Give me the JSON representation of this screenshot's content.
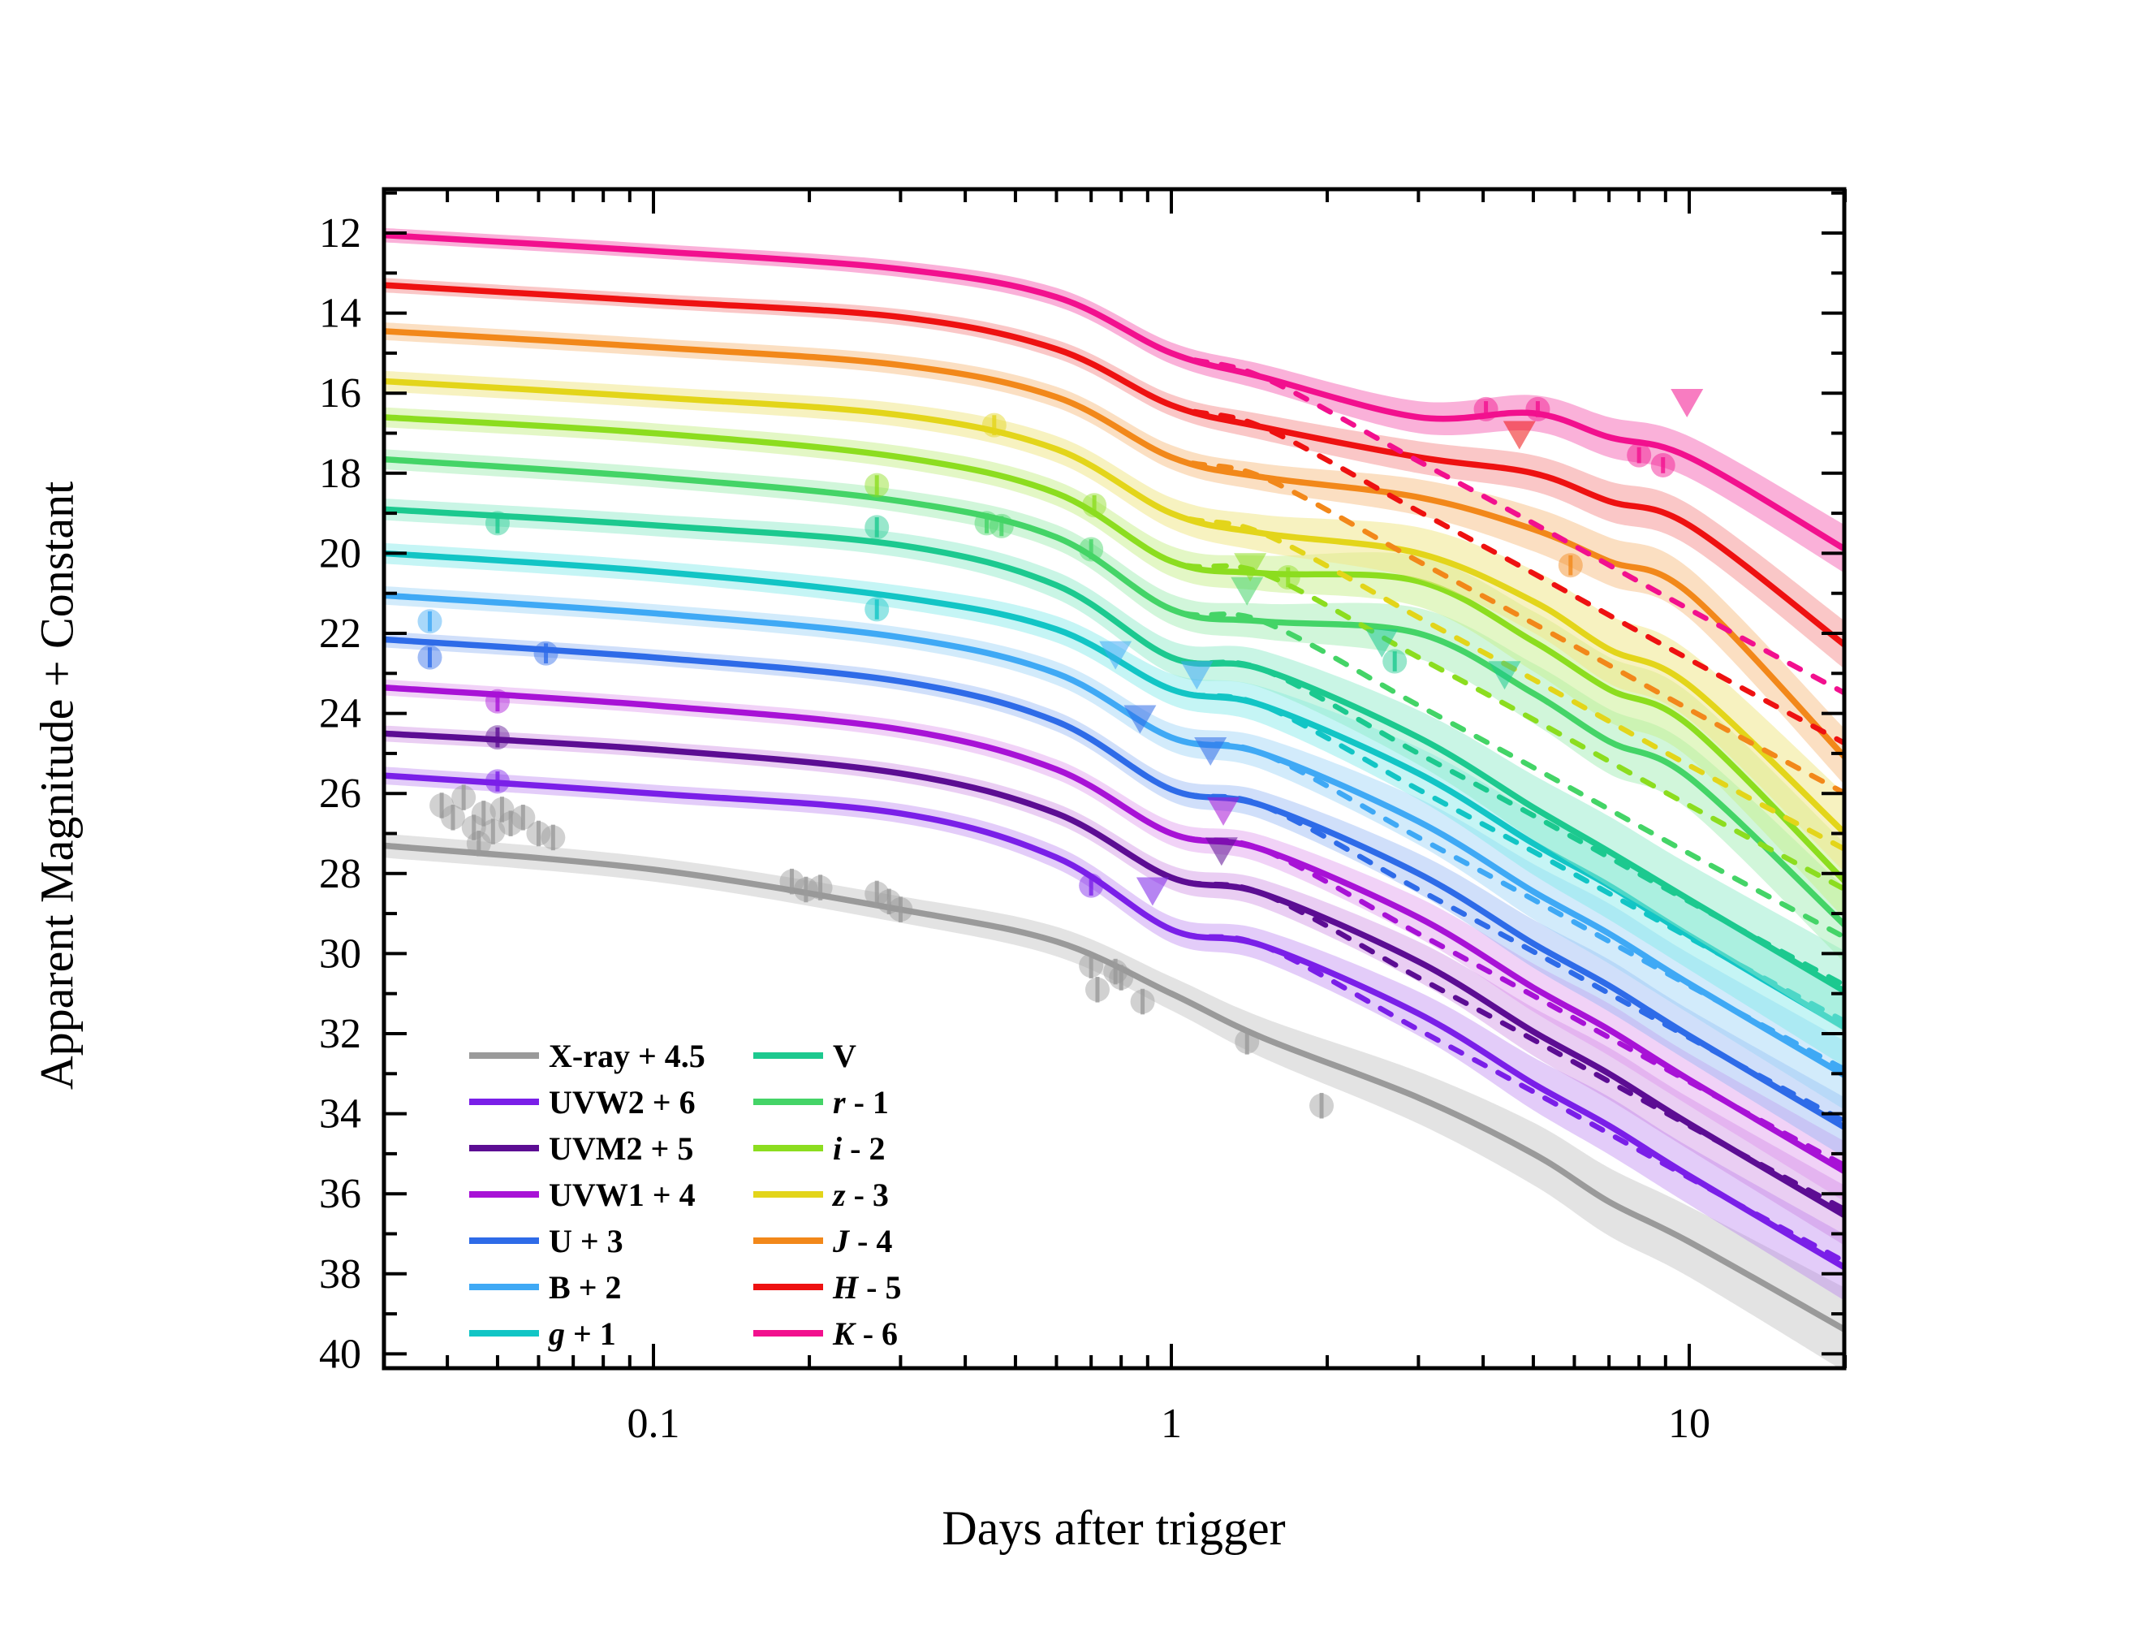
{
  "chart_data": {
    "type": "line",
    "title": "",
    "xlabel": "Days after trigger",
    "ylabel": "Apparent Magnitude + Constant",
    "x_scale": "log",
    "x_range": [
      0.0302,
      20.1
    ],
    "y_range_mag": [
      10.9,
      40.4
    ],
    "y_axis_inverted_note": "magnitudes increase downward",
    "x_major_ticks": [
      0.1,
      1,
      10
    ],
    "x_major_labels": [
      "0.1",
      "1",
      "10"
    ],
    "x_minor_ticks": [
      0.04,
      0.05,
      0.06,
      0.07,
      0.08,
      0.09,
      0.2,
      0.3,
      0.4,
      0.5,
      0.6,
      0.7,
      0.8,
      0.9,
      2,
      3,
      4,
      5,
      6,
      7,
      8,
      9,
      20
    ],
    "y_major_ticks": [
      12,
      14,
      16,
      18,
      20,
      22,
      24,
      26,
      28,
      30,
      32,
      34,
      36,
      38,
      40
    ],
    "y_minor_ticks": [
      11,
      13,
      15,
      17,
      19,
      21,
      23,
      25,
      27,
      29,
      31,
      33,
      35,
      37,
      39
    ],
    "grid": false,
    "legend_position": "lower-left-inside",
    "solid_x": [
      0.03,
      0.1,
      0.3,
      0.6,
      1,
      1.5,
      3,
      5,
      7,
      10,
      20
    ],
    "dashed_x": [
      0.03,
      0.1,
      0.3,
      0.6,
      1,
      1.5,
      3,
      5,
      10,
      20
    ],
    "series": [
      {
        "key": "xray",
        "sym": "X-ray",
        "rest": " + 4.5",
        "italic": false,
        "color": "#9A9A9A",
        "band_color": "#9A9A9A",
        "band_opacity": 0.28,
        "solid_mag": [
          27.3,
          27.9,
          28.9,
          29.7,
          31.0,
          32.1,
          33.6,
          35.0,
          36.2,
          37.2,
          39.4
        ],
        "dashed_mag": null,
        "hw": [
          0.3,
          0.3,
          0.33,
          0.37,
          0.42,
          0.5,
          0.65,
          0.78,
          0.85,
          0.88,
          1.05
        ],
        "circles": [
          [
            0.039,
            26.3
          ],
          [
            0.041,
            26.6
          ],
          [
            0.043,
            26.1
          ],
          [
            0.045,
            26.85
          ],
          [
            0.047,
            26.5
          ],
          [
            0.049,
            26.95
          ],
          [
            0.051,
            26.4
          ],
          [
            0.053,
            26.75
          ],
          [
            0.056,
            26.6
          ],
          [
            0.06,
            27.0
          ],
          [
            0.064,
            27.1
          ],
          [
            0.046,
            27.25
          ],
          [
            0.185,
            28.2
          ],
          [
            0.197,
            28.4
          ],
          [
            0.21,
            28.35
          ],
          [
            0.27,
            28.5
          ],
          [
            0.285,
            28.7
          ],
          [
            0.3,
            28.9
          ],
          [
            0.7,
            30.3
          ],
          [
            0.72,
            30.9
          ],
          [
            0.78,
            30.45
          ],
          [
            0.8,
            30.6
          ],
          [
            0.88,
            31.2
          ],
          [
            1.4,
            32.2
          ],
          [
            1.95,
            33.8
          ]
        ],
        "triangles": [],
        "err": 0.32
      },
      {
        "key": "uvw2",
        "sym": "UVW2",
        "rest": " + 6",
        "italic": false,
        "color": "#7A1FE8",
        "band_color": "#B57AF0",
        "band_opacity": 0.38,
        "solid_mag": [
          25.55,
          26.0,
          26.5,
          27.6,
          29.4,
          29.8,
          31.5,
          33.25,
          34.3,
          35.55,
          37.85
        ],
        "dashed_mag": [
          25.55,
          26.0,
          26.5,
          27.6,
          29.4,
          29.8,
          31.9,
          33.45,
          35.6,
          37.7
        ],
        "hw": [
          0.22,
          0.22,
          0.24,
          0.28,
          0.33,
          0.39,
          0.55,
          0.66,
          0.72,
          0.72,
          0.83
        ],
        "circles": [
          [
            0.05,
            25.7
          ],
          [
            0.7,
            28.3
          ]
        ],
        "triangles": [
          [
            0.92,
            28.4
          ]
        ],
        "err": 0.25
      },
      {
        "key": "uvm2",
        "sym": "UVM2",
        "rest": " + 5",
        "italic": false,
        "color": "#5C0D93",
        "band_color": "#C87FE0",
        "band_opacity": 0.38,
        "solid_mag": [
          24.5,
          24.9,
          25.5,
          26.5,
          28.1,
          28.5,
          30.2,
          31.95,
          33.0,
          34.25,
          36.55
        ],
        "dashed_mag": [
          24.5,
          24.9,
          25.5,
          26.5,
          28.1,
          28.5,
          30.6,
          32.15,
          34.3,
          36.4
        ],
        "hw": [
          0.2,
          0.2,
          0.22,
          0.25,
          0.3,
          0.35,
          0.5,
          0.6,
          0.65,
          0.65,
          0.75
        ],
        "circles": [
          [
            0.05,
            24.6
          ]
        ],
        "triangles": [
          [
            1.25,
            27.4
          ]
        ],
        "err": 0.25
      },
      {
        "key": "uvw1",
        "sym": "UVW1",
        "rest": " + 4",
        "italic": false,
        "color": "#A812D6",
        "band_color": "#DD8FEA",
        "band_opacity": 0.4,
        "solid_mag": [
          23.35,
          23.8,
          24.4,
          25.4,
          27.0,
          27.4,
          29.1,
          30.85,
          31.9,
          33.15,
          35.45
        ],
        "dashed_mag": [
          23.35,
          23.8,
          24.4,
          25.4,
          27.0,
          27.4,
          29.5,
          31.05,
          33.2,
          35.3
        ],
        "hw": [
          0.2,
          0.2,
          0.22,
          0.25,
          0.3,
          0.35,
          0.5,
          0.6,
          0.65,
          0.65,
          0.75
        ],
        "circles": [
          [
            0.05,
            23.7
          ]
        ],
        "triangles": [
          [
            1.26,
            26.4
          ]
        ],
        "err": 0.25
      },
      {
        "key": "u",
        "sym": "U",
        "rest": " + 3",
        "italic": false,
        "color": "#2E6BE8",
        "band_color": "#8FB2F2",
        "band_opacity": 0.42,
        "solid_mag": [
          22.15,
          22.6,
          23.2,
          24.2,
          25.9,
          26.3,
          28.0,
          29.75,
          30.8,
          32.05,
          34.35
        ],
        "dashed_mag": [
          22.15,
          22.6,
          23.2,
          24.2,
          25.9,
          26.3,
          28.4,
          29.95,
          32.1,
          34.2
        ],
        "hw": [
          0.2,
          0.2,
          0.22,
          0.25,
          0.3,
          0.35,
          0.5,
          0.6,
          0.65,
          0.65,
          0.75
        ],
        "circles": [
          [
            0.037,
            22.6
          ],
          [
            0.062,
            22.5
          ]
        ],
        "triangles": [
          [
            0.87,
            24.1
          ],
          [
            1.19,
            24.9
          ]
        ],
        "err": 0.25
      },
      {
        "key": "b",
        "sym": "B",
        "rest": " + 2",
        "italic": false,
        "color": "#3FA9F5",
        "band_color": "#9CD2F7",
        "band_opacity": 0.45,
        "solid_mag": [
          21.05,
          21.5,
          22.1,
          23.0,
          24.6,
          25.0,
          26.7,
          28.45,
          29.5,
          30.75,
          33.05
        ],
        "dashed_mag": [
          21.05,
          21.5,
          22.1,
          23.0,
          24.6,
          25.0,
          27.1,
          28.65,
          30.8,
          32.9
        ],
        "hw": [
          0.23,
          0.23,
          0.25,
          0.29,
          0.35,
          0.4,
          0.58,
          0.69,
          0.75,
          0.75,
          0.86
        ],
        "circles": [
          [
            0.037,
            21.7
          ]
        ],
        "triangles": [
          [
            0.78,
            22.5
          ],
          [
            1.12,
            23.0
          ]
        ],
        "err": 0.25
      },
      {
        "key": "g",
        "sym": "g",
        "rest": " + 1",
        "italic": true,
        "color": "#12C5C5",
        "band_color": "#7FE8E8",
        "band_opacity": 0.45,
        "solid_mag": [
          20.0,
          20.45,
          21.1,
          21.9,
          23.4,
          23.8,
          25.5,
          27.25,
          28.3,
          29.55,
          31.85
        ],
        "dashed_mag": [
          20.0,
          20.45,
          21.1,
          21.9,
          23.4,
          23.8,
          25.9,
          27.45,
          29.6,
          31.7
        ],
        "hw": [
          0.26,
          0.26,
          0.29,
          0.33,
          0.39,
          0.46,
          0.65,
          0.78,
          0.85,
          0.85,
          0.98
        ],
        "circles": [
          [
            0.27,
            21.4
          ]
        ],
        "triangles": [],
        "err": 0.25
      },
      {
        "key": "v",
        "sym": "V",
        "rest": "",
        "italic": false,
        "color": "#1CC98F",
        "band_color": "#8FEBC9",
        "band_opacity": 0.48,
        "solid_mag": [
          18.9,
          19.3,
          19.8,
          20.8,
          22.6,
          22.9,
          24.6,
          26.35,
          27.45,
          28.65,
          30.95
        ],
        "dashed_mag": [
          18.9,
          19.3,
          19.8,
          20.8,
          22.6,
          22.9,
          25.0,
          26.55,
          28.7,
          30.8
        ],
        "hw": [
          0.27,
          0.27,
          0.3,
          0.34,
          0.41,
          0.47,
          0.68,
          0.81,
          0.88,
          0.88,
          1.01
        ],
        "circles": [
          [
            0.05,
            19.25
          ],
          [
            0.27,
            19.35
          ],
          [
            2.7,
            22.7
          ]
        ],
        "triangles": [
          [
            2.55,
            22.2
          ],
          [
            4.4,
            23.0
          ]
        ],
        "err": 0.25
      },
      {
        "key": "r",
        "sym": "r",
        "rest": " - 1",
        "italic": true,
        "color": "#44D467",
        "band_color": "#9FECB2",
        "band_opacity": 0.48,
        "solid_mag": [
          17.65,
          18.1,
          18.7,
          19.6,
          21.4,
          21.7,
          22.0,
          23.5,
          24.7,
          25.6,
          29.3
        ],
        "dashed_mag": [
          17.65,
          18.1,
          18.7,
          19.6,
          21.4,
          21.7,
          23.8,
          25.35,
          27.5,
          29.6
        ],
        "hw": [
          0.25,
          0.25,
          0.28,
          0.31,
          0.38,
          0.44,
          0.63,
          0.75,
          0.81,
          0.81,
          0.94
        ],
        "circles": [
          [
            0.44,
            19.25
          ],
          [
            0.47,
            19.32
          ],
          [
            0.7,
            19.9
          ]
        ],
        "triangles": [
          [
            1.4,
            20.9
          ]
        ],
        "err": 0.25
      },
      {
        "key": "i",
        "sym": "i",
        "rest": " - 2",
        "italic": true,
        "color": "#8CDD1F",
        "band_color": "#C8F08C",
        "band_opacity": 0.5,
        "solid_mag": [
          16.6,
          17.0,
          17.6,
          18.5,
          20.2,
          20.5,
          20.7,
          22.2,
          23.4,
          24.3,
          28.2
        ],
        "dashed_mag": [
          16.6,
          17.0,
          17.6,
          18.5,
          20.2,
          20.5,
          22.6,
          24.15,
          26.3,
          28.4
        ],
        "hw": [
          0.25,
          0.25,
          0.28,
          0.31,
          0.38,
          0.44,
          0.63,
          0.75,
          0.81,
          0.81,
          0.94
        ],
        "circles": [
          [
            0.27,
            18.3
          ],
          [
            0.71,
            18.8
          ],
          [
            1.68,
            20.6
          ]
        ],
        "triangles": [
          [
            1.42,
            20.3
          ]
        ],
        "err": 0.25
      },
      {
        "key": "z",
        "sym": "z",
        "rest": " - 3",
        "italic": true,
        "color": "#E3D51A",
        "band_color": "#F0E88C",
        "band_opacity": 0.55,
        "solid_mag": [
          15.7,
          16.1,
          16.55,
          17.4,
          19.0,
          19.5,
          20.0,
          21.2,
          22.4,
          23.3,
          27.0
        ],
        "dashed_mag": [
          15.7,
          16.1,
          16.55,
          17.4,
          19.0,
          19.5,
          21.6,
          23.15,
          25.3,
          27.4
        ],
        "hw": [
          0.26,
          0.26,
          0.29,
          0.33,
          0.39,
          0.46,
          0.65,
          0.78,
          0.85,
          0.85,
          0.98
        ],
        "circles": [
          [
            0.455,
            16.8
          ]
        ],
        "triangles": [],
        "err": 0.25
      },
      {
        "key": "j",
        "sym": "J",
        "rest": " - 4",
        "italic": true,
        "color": "#F2881A",
        "band_color": "#F7C48F",
        "band_opacity": 0.55,
        "solid_mag": [
          14.45,
          14.85,
          15.3,
          16.1,
          17.6,
          18.1,
          18.6,
          19.4,
          20.2,
          21.0,
          25.1
        ],
        "dashed_mag": [
          14.45,
          14.85,
          15.3,
          16.1,
          17.6,
          18.1,
          20.2,
          21.75,
          23.9,
          26.0
        ],
        "hw": [
          0.22,
          0.22,
          0.24,
          0.26,
          0.3,
          0.34,
          0.45,
          0.55,
          0.6,
          0.62,
          0.7
        ],
        "circles": [
          [
            5.9,
            20.3
          ]
        ],
        "triangles": [],
        "err": 0.25
      },
      {
        "key": "h",
        "sym": "H",
        "rest": " - 5",
        "italic": true,
        "color": "#EE1111",
        "band_color": "#F7A2A2",
        "band_opacity": 0.6,
        "solid_mag": [
          13.3,
          13.7,
          14.1,
          14.9,
          16.3,
          16.85,
          17.6,
          18.0,
          18.7,
          19.3,
          22.3
        ],
        "dashed_mag": [
          13.3,
          13.7,
          14.1,
          14.9,
          16.3,
          16.85,
          18.95,
          20.5,
          22.65,
          24.75
        ],
        "hw": [
          0.18,
          0.18,
          0.2,
          0.23,
          0.27,
          0.32,
          0.4,
          0.45,
          0.5,
          0.52,
          0.6
        ],
        "circles": [],
        "triangles": [
          [
            4.7,
            17.0
          ]
        ],
        "err": 0.2
      },
      {
        "key": "k",
        "sym": "K",
        "rest": " - 6",
        "italic": true,
        "color": "#F2108E",
        "band_color": "#F787C4",
        "band_opacity": 0.65,
        "solid_mag": [
          12.05,
          12.45,
          12.9,
          13.6,
          15.0,
          15.6,
          16.6,
          16.5,
          17.1,
          17.6,
          19.9
        ],
        "dashed_mag": [
          12.05,
          12.45,
          12.9,
          13.6,
          15.0,
          15.6,
          17.7,
          19.25,
          21.4,
          23.5
        ],
        "hw": [
          0.18,
          0.18,
          0.2,
          0.23,
          0.27,
          0.32,
          0.4,
          0.45,
          0.5,
          0.52,
          0.6
        ],
        "circles": [
          [
            4.05,
            16.4
          ],
          [
            5.1,
            16.4
          ],
          [
            8.0,
            17.55
          ],
          [
            8.9,
            17.8
          ]
        ],
        "triangles": [
          [
            9.9,
            16.2
          ]
        ],
        "err": 0.2
      }
    ],
    "legend": {
      "columns": [
        [
          "xray",
          "uvw2",
          "uvm2",
          "uvw1",
          "u",
          "b",
          "g"
        ],
        [
          "v",
          "r",
          "i",
          "z",
          "j",
          "h",
          "k"
        ]
      ]
    }
  }
}
